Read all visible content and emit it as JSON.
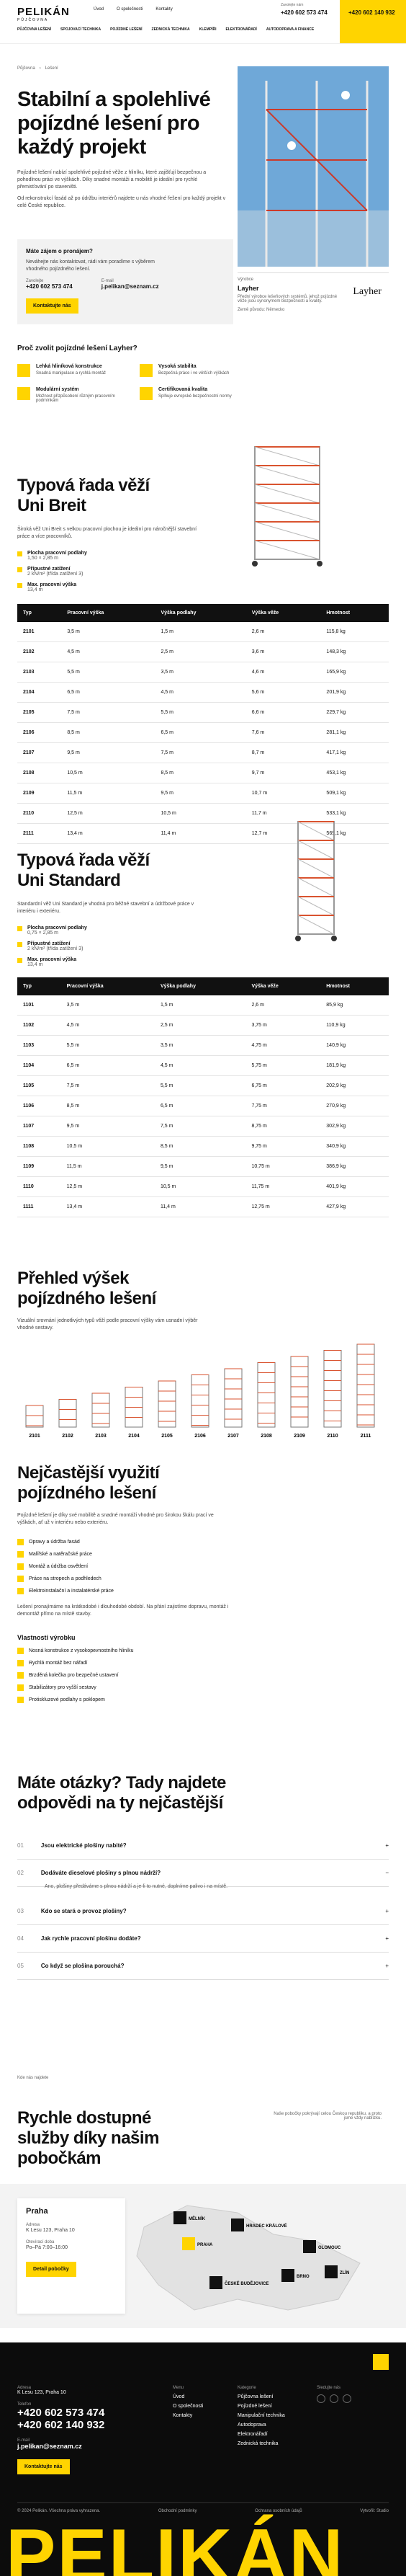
{
  "header": {
    "logo": "PELIKÁN",
    "logo_sub": "PŮJČOVNA",
    "top_nav": [
      "Úvod",
      "O společnosti",
      "Kontakty"
    ],
    "phone_label": "Zavolejte nám",
    "phones": [
      "+420 602 573 474",
      "+420 602 140 932"
    ],
    "nav": [
      "PŮJČOVNA LEŠENÍ",
      "SPOJOVACÍ TECHNIKA",
      "POJÍZDNÉ LEŠENÍ",
      "ZEDNICKÁ TECHNIKA",
      "KLEMPÍŘI",
      "ELEKTRONÁŘADÍ",
      "AUTODOPRAVA A FINANCE"
    ]
  },
  "breadcrumb": [
    "Půjčovna",
    "Lešení"
  ],
  "hero": {
    "title": "Stabilní a spolehlivé pojízdné lešení pro každý projekt",
    "paragraphs": [
      "Pojízdné lešení nabízí spolehlivé pojízdné věže z hliníku, které zajišťují bezpečnou a pohodlnou práci ve výškách. Díky snadné montáži a mobilitě je ideální pro rychlé přemisťování po staveništi.",
      "Od rekonstrukcí fasád až po údržbu interiérů najdete u nás vhodné řešení pro každý projekt v celé České republice."
    ],
    "contact": {
      "title": "Máte zájem o pronájem?",
      "text": "Neváhejte nás kontaktovat, rádi vám poradíme s výběrem vhodného pojízdného lešení.",
      "phone_label": "Zavolejte",
      "phone": "+420 602 573 474",
      "email_label": "E-mail",
      "email": "j.pelikan@seznam.cz",
      "button": "Kontaktujte nás"
    },
    "maker": {
      "label": "Výrobce",
      "name": "Layher",
      "text": "Přední výrobce lešeňových systémů, jehož pojízdné věže jsou synonymem bezpečnosti a kvality.",
      "origin": "Země původu: Německo"
    }
  },
  "features": {
    "title": "Proč zvolit pojízdné lešení Layher?",
    "items": [
      {
        "title": "Lehká hliníková konstrukce",
        "text": "Snadná manipulace a rychlá montáž"
      },
      {
        "title": "Vysoká stabilita",
        "text": "Bezpečná práce i ve větších výškách"
      },
      {
        "title": "Modulární systém",
        "text": "Možnost přizpůsobení různým pracovním podmínkám"
      },
      {
        "title": "Certifikovaná kvalita",
        "text": "Splňuje evropské bezpečnostní normy"
      }
    ]
  },
  "breit": {
    "title": "Typová řada věží Uni Breit",
    "text": "Široká věž Uni Breit s velkou pracovní plochou je ideální pro náročnější stavební práce a více pracovníků.",
    "specs": [
      {
        "label": "Plocha pracovní podlahy",
        "value": "1,50 × 2,85 m"
      },
      {
        "label": "Přípustné zatížení",
        "value": "2 kN/m² (třída zatížení 3)"
      },
      {
        "label": "Max. pracovní výška",
        "value": "13,4 m"
      }
    ],
    "columns": [
      "Typ",
      "Pracovní výška",
      "Výška podlahy",
      "Výška věže",
      "Hmotnost"
    ],
    "rows": [
      [
        "2101",
        "3,5 m",
        "1,5 m",
        "2,6 m",
        "115,8 kg"
      ],
      [
        "2102",
        "4,5 m",
        "2,5 m",
        "3,6 m",
        "148,3 kg"
      ],
      [
        "2103",
        "5,5 m",
        "3,5 m",
        "4,6 m",
        "165,9 kg"
      ],
      [
        "2104",
        "6,5 m",
        "4,5 m",
        "5,6 m",
        "201,9 kg"
      ],
      [
        "2105",
        "7,5 m",
        "5,5 m",
        "6,6 m",
        "229,7 kg"
      ],
      [
        "2106",
        "8,5 m",
        "6,5 m",
        "7,6 m",
        "281,1 kg"
      ],
      [
        "2107",
        "9,5 m",
        "7,5 m",
        "8,7 m",
        "417,1 kg"
      ],
      [
        "2108",
        "10,5 m",
        "8,5 m",
        "9,7 m",
        "453,1 kg"
      ],
      [
        "2109",
        "11,5 m",
        "9,5 m",
        "10,7 m",
        "509,1 kg"
      ],
      [
        "2110",
        "12,5 m",
        "10,5 m",
        "11,7 m",
        "533,1 kg"
      ],
      [
        "2111",
        "13,4 m",
        "11,4 m",
        "12,7 m",
        "569,1 kg"
      ]
    ]
  },
  "standard": {
    "title": "Typová řada věží Uni Standard",
    "text": "Standardní věž Uni Standard je vhodná pro běžné stavební a údržbové práce v interiéru i exteriéru.",
    "specs": [
      {
        "label": "Plocha pracovní podlahy",
        "value": "0,75 × 2,85 m"
      },
      {
        "label": "Přípustné zatížení",
        "value": "2 kN/m² (třída zatížení 3)"
      },
      {
        "label": "Max. pracovní výška",
        "value": "13,4 m"
      }
    ],
    "columns": [
      "Typ",
      "Pracovní výška",
      "Výška podlahy",
      "Výška věže",
      "Hmotnost"
    ],
    "rows": [
      [
        "1101",
        "3,5 m",
        "1,5 m",
        "2,6 m",
        "85,9 kg"
      ],
      [
        "1102",
        "4,5 m",
        "2,5 m",
        "3,75 m",
        "110,9 kg"
      ],
      [
        "1103",
        "5,5 m",
        "3,5 m",
        "4,75 m",
        "140,9 kg"
      ],
      [
        "1104",
        "6,5 m",
        "4,5 m",
        "5,75 m",
        "181,9 kg"
      ],
      [
        "1105",
        "7,5 m",
        "5,5 m",
        "6,75 m",
        "202,9 kg"
      ],
      [
        "1106",
        "8,5 m",
        "6,5 m",
        "7,75 m",
        "270,9 kg"
      ],
      [
        "1107",
        "9,5 m",
        "7,5 m",
        "8,75 m",
        "302,9 kg"
      ],
      [
        "1108",
        "10,5 m",
        "8,5 m",
        "9,75 m",
        "340,9 kg"
      ],
      [
        "1109",
        "11,5 m",
        "9,5 m",
        "10,75 m",
        "386,9 kg"
      ],
      [
        "1110",
        "12,5 m",
        "10,5 m",
        "11,75 m",
        "401,9 kg"
      ],
      [
        "1111",
        "13,4 m",
        "11,4 m",
        "12,75 m",
        "427,9 kg"
      ]
    ]
  },
  "overview": {
    "title": "Přehled výšek pojízdného lešení",
    "text": "Vizuální srovnání jednotlivých typů věží podle pracovní výšky vám usnadní výběr vhodné sestavy.",
    "labels": [
      "2101",
      "2102",
      "2103",
      "2104",
      "2105",
      "2106",
      "2107",
      "2108",
      "2109",
      "2110",
      "2111"
    ]
  },
  "usage": {
    "title": "Nejčastější využití pojízdného lešení",
    "text": "Pojízdné lešení je díky své mobilitě a snadné montáži vhodné pro širokou škálu prací ve výškách, ať už v interiéru nebo exteriéru.",
    "items": [
      "Opravy a údržba fasád",
      "Malířské a natěračské práce",
      "Montáž a údržba osvětlení",
      "Práce na stropech a podhledech",
      "Elektroinstalační a instalatérské práce"
    ],
    "paragraph": "Lešení pronajímáme na krátkodobé i dlouhodobé období. Na přání zajistíme dopravu, montáž i demontáž přímo na místě stavby.",
    "props_title": "Vlastnosti výrobku",
    "props": [
      "Nosná konstrukce z vysokopevnostního hliníku",
      "Rychlá montáž bez nářadí",
      "Brzděná kolečka pro bezpečné ustavení",
      "Stabilizátory pro vyšší sestavy",
      "Protiskluzové podlahy s poklopem"
    ]
  },
  "faq": {
    "title": "Máte otázky? Tady najdete odpovědi na ty nejčastější",
    "items": [
      {
        "num": "01",
        "q": "Jsou elektrické plošiny nabité?"
      },
      {
        "num": "02",
        "q": "Dodáváte dieselové plošiny s plnou nádrží?",
        "a": "Ano, plošiny předáváme s plnou nádrží a je-li to nutné, doplníme palivo i na místě."
      },
      {
        "num": "03",
        "q": "Kdo se stará o provoz plošiny?"
      },
      {
        "num": "04",
        "q": "Jak rychle pracovní plošinu dodáte?"
      },
      {
        "num": "05",
        "q": "Co když se plošina porouchá?"
      }
    ]
  },
  "branches": {
    "label": "Kde nás najdete",
    "title": "Rychle dostupné služby díky našim pobočkám",
    "note": "Naše pobočky pokrývají celou Českou republiku, a proto jsme vždy nablízku.",
    "card": {
      "city": "Praha",
      "label": "Adresa",
      "address": "K Lesu 123, Praha 10",
      "hours_label": "Otevírací doba",
      "hours": "Po–Pá 7:00–16:00",
      "button": "Detail pobočky"
    },
    "cities": [
      "MĚLNÍK",
      "PRAHA",
      "HRADEC KRÁLOVÉ",
      "OLOMOUC",
      "BRNO",
      "ZLÍN",
      "ČESKÉ BUDĚJOVICE"
    ]
  },
  "footer": {
    "address_label": "Adresa",
    "address": "K Lesu 123, Praha 10",
    "phone_label": "Telefon",
    "phones": [
      "+420 602 573 474",
      "+420 602 140 932"
    ],
    "email_label": "E-mail",
    "email": "j.pelikan@seznam.cz",
    "button": "Kontaktujte nás",
    "menu_label": "Menu",
    "menu": [
      "Úvod",
      "O společnosti",
      "Kontakty"
    ],
    "cat_label": "Kategorie",
    "cats": [
      "Půjčovna lešení",
      "Pojízdné lešení",
      "Manipulační technika",
      "Autodoprava",
      "Elektronářadí",
      "Zednická technika"
    ],
    "social_label": "Sledujte nás",
    "copyright": "© 2024 Pelikán. Všechna práva vyhrazena.",
    "links": [
      "Obchodní podmínky",
      "Ochrana osobních údajů"
    ],
    "credit": "Vytvořil: Studio",
    "big": "PELIKÁN"
  }
}
